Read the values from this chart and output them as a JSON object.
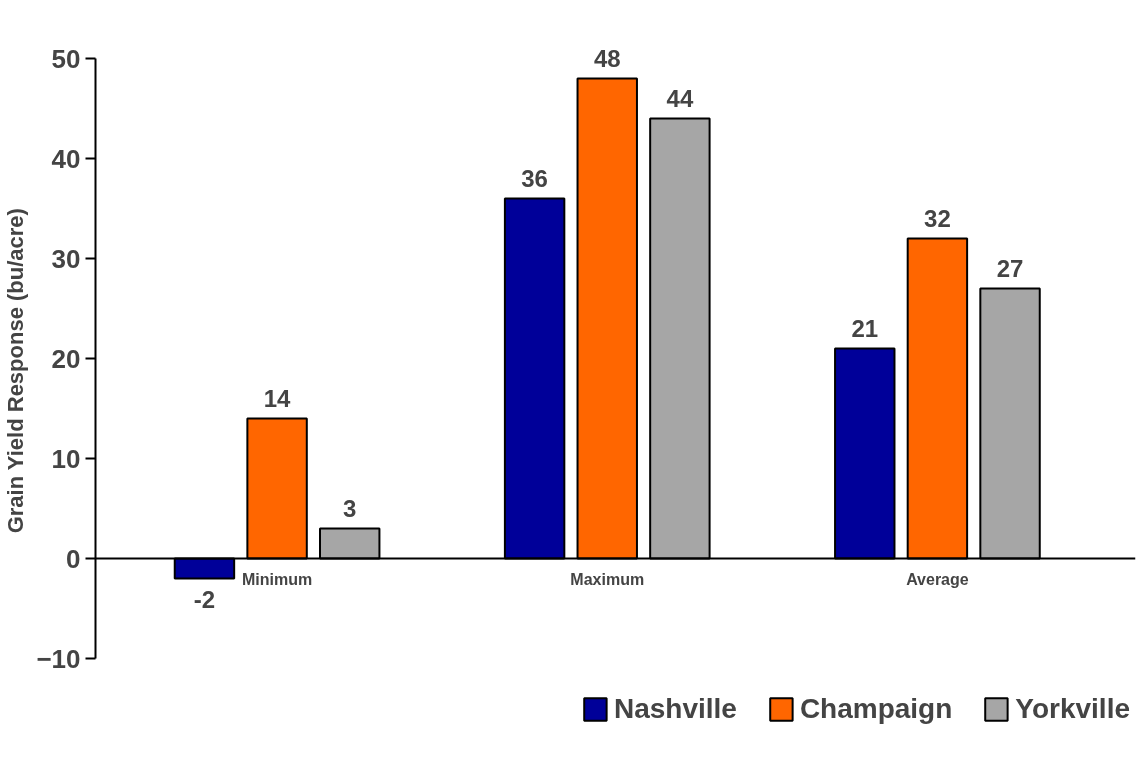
{
  "chart_data": {
    "type": "bar",
    "ylabel": "Grain Yield Response (bu/acre)",
    "categories": [
      "Minimum",
      "Maximum",
      "Average"
    ],
    "series": [
      {
        "name": "Nashville",
        "color": "#000099",
        "values": [
          -2,
          36,
          21
        ]
      },
      {
        "name": "Champaign",
        "color": "#ff6600",
        "values": [
          14,
          48,
          32
        ]
      },
      {
        "name": "Yorkville",
        "color": "#a6a6a6",
        "values": [
          3,
          44,
          27
        ]
      }
    ],
    "ylim": [
      -10,
      50
    ],
    "yticks": [
      -10,
      0,
      10,
      20,
      30,
      40,
      50
    ],
    "data_labels": true,
    "legend": "bottom",
    "grid": false
  }
}
